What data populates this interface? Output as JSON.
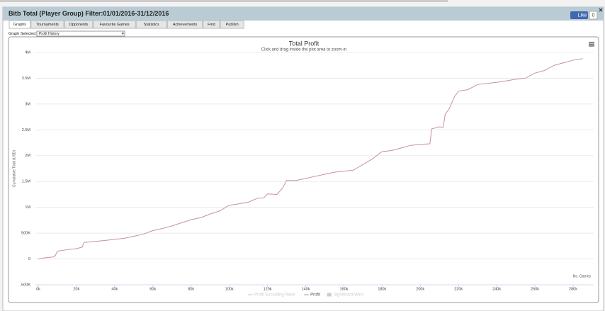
{
  "header": {
    "title": "Bitb Total (Player Group) Filter:01/01/2016-31/12/2016",
    "like_label": "Like",
    "like_count": "0"
  },
  "tabs": [
    "Graphs",
    "Tournaments",
    "Opponents",
    "Favourite Games",
    "Statistics",
    "Achievements",
    "Find",
    "Publish"
  ],
  "graph_selector": {
    "label": "Graph Selected:",
    "value": "Profit History"
  },
  "chart_data": {
    "type": "line",
    "title": "Total Profit",
    "subtitle": "Click and drag inside the plot area to zoom-in",
    "y_label": "Cumulative Total (USD)",
    "x_label": "No. Games",
    "xlim": [
      0,
      280000
    ],
    "xticks": [
      {
        "value": 0,
        "label": "0k"
      },
      {
        "value": 20000,
        "label": "20k"
      },
      {
        "value": 40000,
        "label": "40k"
      },
      {
        "value": 60000,
        "label": "60k"
      },
      {
        "value": 80000,
        "label": "80k"
      },
      {
        "value": 100000,
        "label": "100k"
      },
      {
        "value": 120000,
        "label": "120k"
      },
      {
        "value": 140000,
        "label": "140k"
      },
      {
        "value": 160000,
        "label": "160k"
      },
      {
        "value": 180000,
        "label": "180k"
      },
      {
        "value": 200000,
        "label": "200k"
      },
      {
        "value": 220000,
        "label": "220k"
      },
      {
        "value": 240000,
        "label": "240k"
      },
      {
        "value": 260000,
        "label": "260k"
      },
      {
        "value": 280000,
        "label": "280k"
      }
    ],
    "ylim": [
      -500000,
      4000000
    ],
    "yticks": [
      {
        "value": -500000,
        "label": "-500K"
      },
      0,
      {
        "value": 500000,
        "label": "500K"
      },
      {
        "value": 1000000,
        "label": "1M"
      },
      {
        "value": 1500000,
        "label": "1.5M"
      },
      {
        "value": 2000000,
        "label": "2M"
      },
      {
        "value": 2500000,
        "label": "2.5M"
      },
      {
        "value": 3000000,
        "label": "3M"
      },
      {
        "value": 3500000,
        "label": "3.5M"
      },
      {
        "value": 4000000,
        "label": "4M"
      }
    ],
    "grid": true,
    "legend": [
      {
        "name": "Profit Excluding Rake",
        "hidden": true
      },
      {
        "name": "Profit",
        "hidden": false
      },
      {
        "name": "Significant Wins",
        "hidden": true
      }
    ],
    "series": [
      {
        "name": "Profit",
        "color": "#c9909c",
        "x": [
          0,
          3000,
          8000,
          9000,
          10000,
          15000,
          20000,
          23000,
          24000,
          30000,
          35000,
          40000,
          45000,
          50000,
          55000,
          60000,
          65000,
          70000,
          75000,
          80000,
          85000,
          90000,
          95000,
          100000,
          104000,
          110000,
          115000,
          118000,
          120000,
          125000,
          128000,
          130000,
          135000,
          140000,
          145000,
          150000,
          155000,
          160000,
          165000,
          170000,
          175000,
          180000,
          185000,
          190000,
          195000,
          200000,
          205000,
          206000,
          210000,
          212000,
          213000,
          215000,
          218000,
          220000,
          225000,
          230000,
          235000,
          240000,
          245000,
          250000,
          255000,
          260000,
          265000,
          270000,
          275000,
          280000,
          285000
        ],
        "values": [
          0,
          20000,
          40000,
          70000,
          150000,
          180000,
          200000,
          230000,
          320000,
          340000,
          360000,
          380000,
          400000,
          440000,
          480000,
          550000,
          590000,
          640000,
          700000,
          760000,
          800000,
          870000,
          930000,
          1040000,
          1060000,
          1100000,
          1180000,
          1180000,
          1260000,
          1250000,
          1380000,
          1520000,
          1520000,
          1560000,
          1600000,
          1640000,
          1680000,
          1700000,
          1720000,
          1830000,
          1940000,
          2080000,
          2100000,
          2150000,
          2200000,
          2220000,
          2230000,
          2520000,
          2560000,
          2550000,
          2800000,
          2900000,
          3150000,
          3250000,
          3280000,
          3380000,
          3400000,
          3420000,
          3450000,
          3480000,
          3500000,
          3600000,
          3650000,
          3750000,
          3800000,
          3850000,
          3880000
        ]
      }
    ]
  }
}
